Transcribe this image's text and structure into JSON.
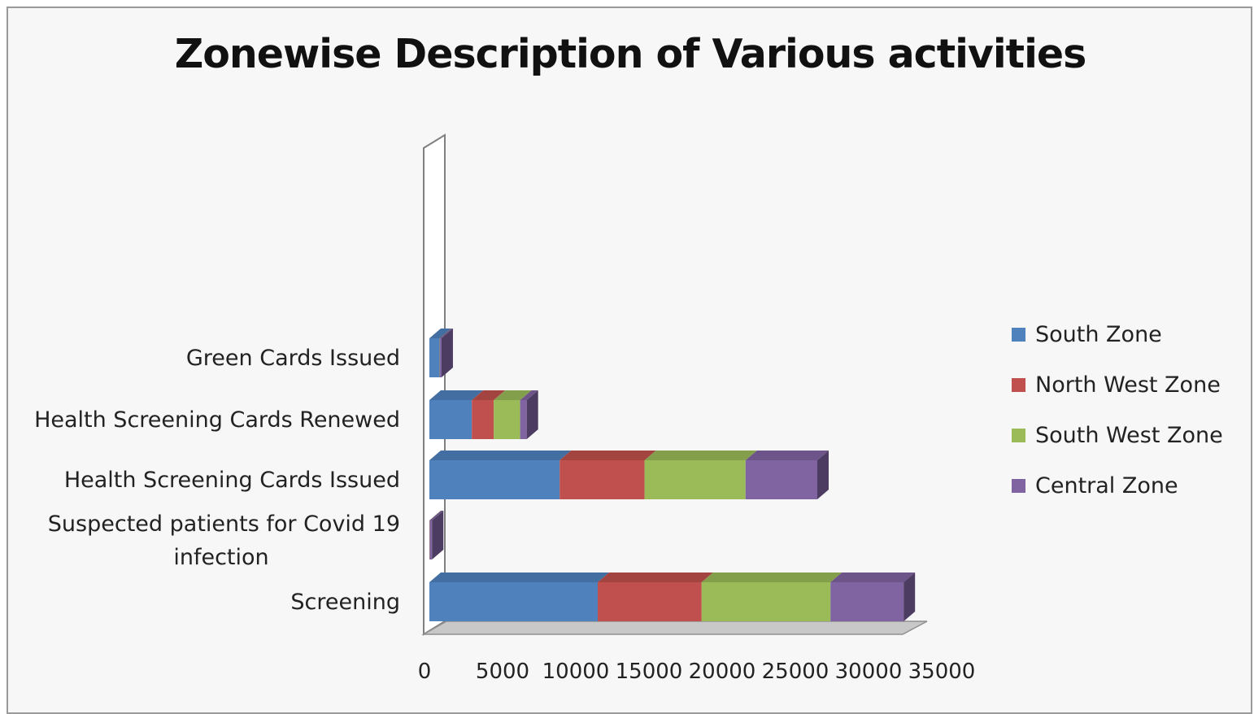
{
  "chart_data": {
    "type": "bar",
    "orientation": "horizontal",
    "stacked": true,
    "three_d": true,
    "title": "Zonewise Description of Various activities",
    "categories": [
      "Screening",
      "Suspected patients for Covid 19 infection",
      "Health Screening Cards Issued",
      "Health Screening Cards Renewed",
      "Green Cards Issued"
    ],
    "series": [
      {
        "name": "South Zone",
        "color": "#4f81bd",
        "values": [
          11500,
          10,
          8900,
          2900,
          700
        ]
      },
      {
        "name": "North West Zone",
        "color": "#c0504d",
        "values": [
          7100,
          10,
          5800,
          1500,
          10
        ]
      },
      {
        "name": "South West Zone",
        "color": "#9bbb59",
        "values": [
          8800,
          10,
          6900,
          1800,
          10
        ]
      },
      {
        "name": "Central Zone",
        "color": "#8064a2",
        "values": [
          5000,
          150,
          4900,
          450,
          10
        ]
      }
    ],
    "x_ticks": [
      "0",
      "5000",
      "10000",
      "15000",
      "20000",
      "25000",
      "30000",
      "35000"
    ],
    "xlim": [
      0,
      35000
    ],
    "legend_position": "right",
    "grid": false
  }
}
